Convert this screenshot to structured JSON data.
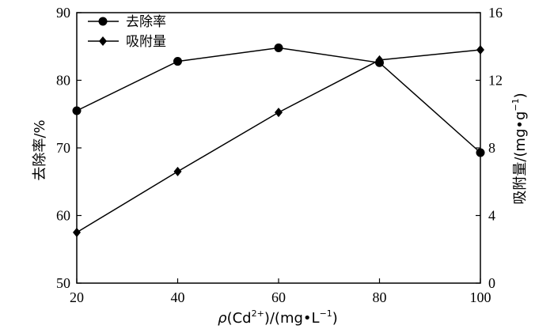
{
  "chart_data": {
    "type": "line",
    "x": [
      20,
      40,
      60,
      80,
      100
    ],
    "xlim": [
      20,
      100
    ],
    "xticks": [
      "20",
      "40",
      "60",
      "80",
      "100"
    ],
    "xlabel": {
      "rho": "ρ",
      "open": "(Cd",
      "sup1": "2+",
      "mid": ")/(mg",
      "dot": "•",
      "l": "L",
      "sup2": "−1",
      "close": ")"
    },
    "y_left": {
      "label": "去除率/%",
      "lim": [
        50,
        90
      ],
      "ticks": [
        "50",
        "60",
        "70",
        "80",
        "90"
      ]
    },
    "y_right": {
      "label_text": "吸附量/(mg",
      "dot": "•",
      "g": "g",
      "sup": "−1",
      "close": ")",
      "lim": [
        0,
        16
      ],
      "ticks": [
        "0",
        "4",
        "8",
        "12",
        "16"
      ]
    },
    "series": [
      {
        "name": "去除率",
        "axis": "left",
        "marker": "circle",
        "values": [
          75.5,
          82.8,
          84.8,
          82.6,
          69.3
        ]
      },
      {
        "name": "吸附量",
        "axis": "right",
        "marker": "diamond",
        "values": [
          3.0,
          6.6,
          10.1,
          13.2,
          13.8
        ]
      }
    ],
    "legend_position": "top-left",
    "grid": false
  }
}
